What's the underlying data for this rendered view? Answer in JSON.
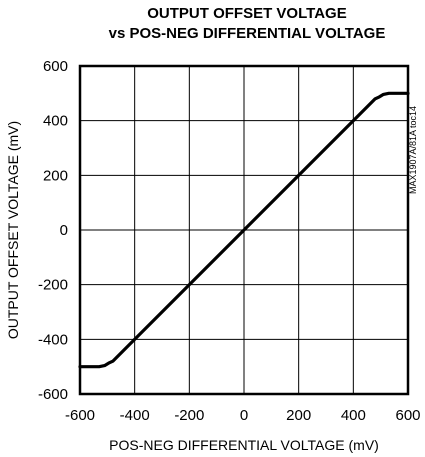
{
  "chart_data": {
    "type": "line",
    "title": "OUTPUT OFFSET VOLTAGE",
    "subtitle": "vs POS-NEG DIFFERENTIAL VOLTAGE",
    "xlabel": "POS-NEG DIFFERENTIAL VOLTAGE (mV)",
    "ylabel": "OUTPUT OFFSET VOLTAGE (mV)",
    "side_code": "MAX1907A/81A toc14",
    "xlim": [
      -600,
      600
    ],
    "ylim": [
      -600,
      600
    ],
    "x_ticks": [
      -600,
      -400,
      -200,
      0,
      200,
      400,
      600
    ],
    "x_tick_labels": [
      "-600",
      "-400",
      "-200",
      "0",
      "200",
      "400",
      "600"
    ],
    "y_ticks": [
      600,
      400,
      200,
      0,
      -200,
      -400,
      -600
    ],
    "y_tick_labels": [
      "600",
      "400",
      "200",
      "0",
      "-200",
      "-400",
      "-600"
    ],
    "grid": true,
    "series": [
      {
        "color": "#000000",
        "x": [
          -600,
          -530,
          -510,
          -495,
          -480,
          480,
          495,
          510,
          530,
          600
        ],
        "y": [
          -500,
          -500,
          -496,
          -487,
          -480,
          480,
          487,
          496,
          500,
          500
        ]
      }
    ]
  }
}
